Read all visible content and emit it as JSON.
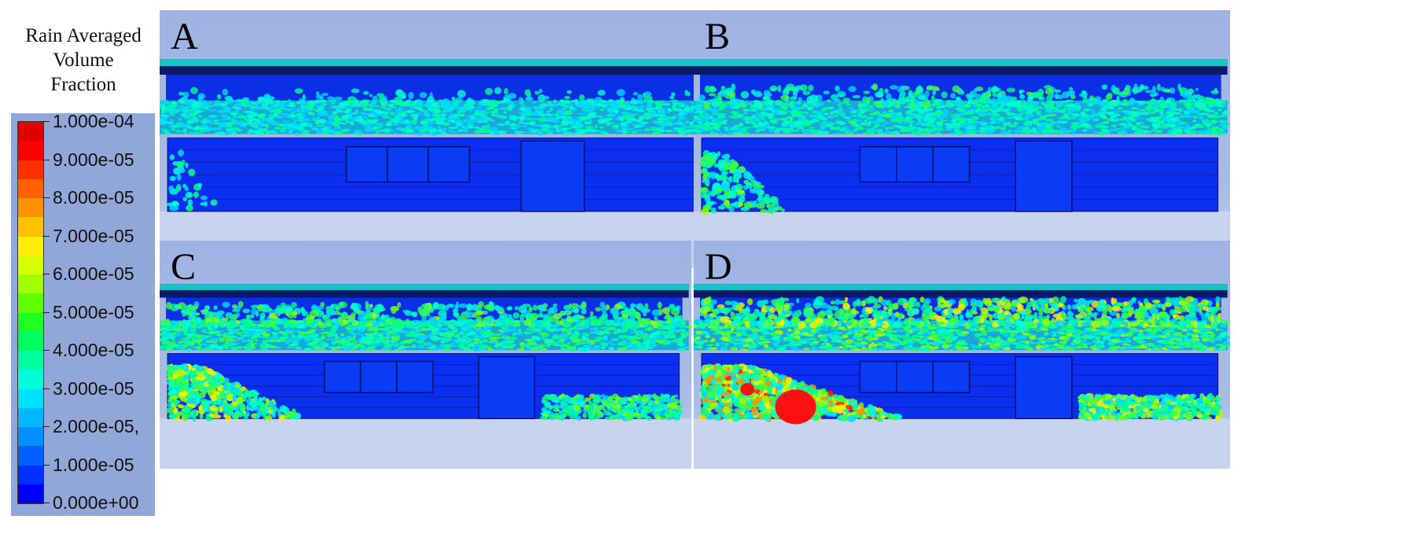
{
  "legend": {
    "title_lines": [
      "Rain Averaged",
      "Volume",
      "Fraction"
    ],
    "ticks": [
      "1.000e-04",
      "9.000e-05",
      "8.000e-05",
      "7.000e-05",
      "6.000e-05",
      "5.000e-05",
      "4.000e-05",
      "3.000e-05",
      "2.000e-05,",
      "1.000e-05",
      "0.000e+00"
    ],
    "colors": [
      "#0000ff",
      "#0030ff",
      "#0060ff",
      "#0090ff",
      "#00b8ff",
      "#00e0ff",
      "#00ffd8",
      "#00ffa0",
      "#00ff60",
      "#20ff20",
      "#60ff00",
      "#a0ff00",
      "#d8ff00",
      "#ffee00",
      "#ffc000",
      "#ff9000",
      "#ff6000",
      "#ff3000",
      "#ff0000",
      "#e00000"
    ]
  },
  "panels": [
    {
      "label": "A",
      "intensity": 0.15
    },
    {
      "label": "B",
      "intensity": 0.35
    },
    {
      "label": "C",
      "intensity": 0.6
    },
    {
      "label": "D",
      "intensity": 0.9
    }
  ]
}
